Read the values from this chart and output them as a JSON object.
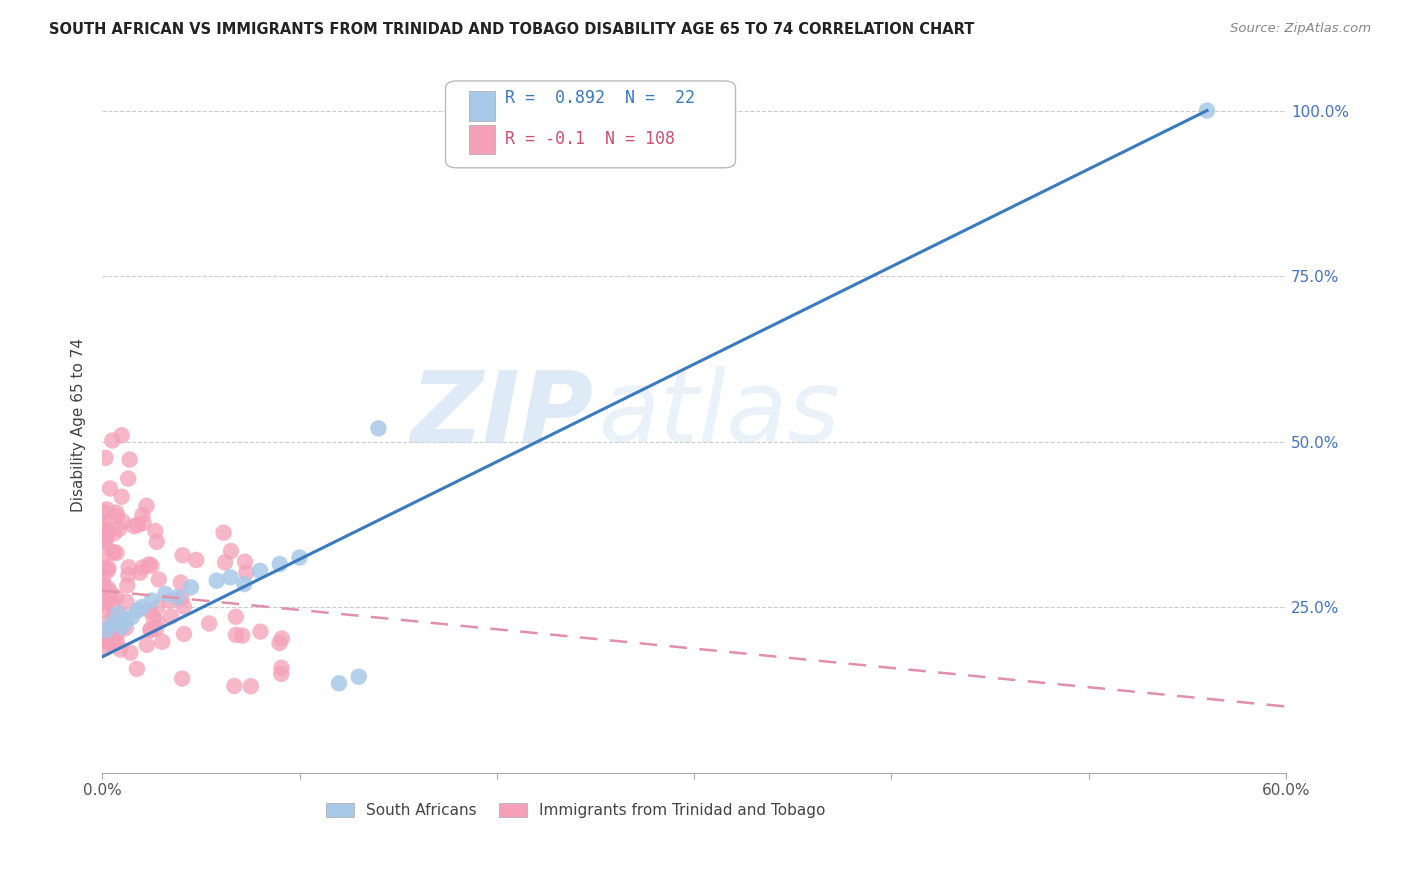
{
  "title": "SOUTH AFRICAN VS IMMIGRANTS FROM TRINIDAD AND TOBAGO DISABILITY AGE 65 TO 74 CORRELATION CHART",
  "source": "Source: ZipAtlas.com",
  "ylabel": "Disability Age 65 to 74",
  "xlim": [
    0.0,
    0.6
  ],
  "ylim": [
    0.0,
    1.05
  ],
  "blue_R": 0.892,
  "blue_N": 22,
  "pink_R": -0.1,
  "pink_N": 108,
  "blue_color": "#a8c8e8",
  "pink_color": "#f4a0b8",
  "blue_line_color": "#3a7abf",
  "pink_line_color": "#e090a8",
  "watermark_zip": "ZIP",
  "watermark_atlas": "atlas",
  "legend_labels": [
    "South Africans",
    "Immigrants from Trinidad and Tobago"
  ],
  "blue_line_x0": 0.0,
  "blue_line_y0": 0.175,
  "blue_line_x1": 0.56,
  "blue_line_y1": 1.0,
  "pink_line_x0": 0.0,
  "pink_line_y0": 0.275,
  "pink_line_x1": 0.6,
  "pink_line_y1": 0.1,
  "ytick_pos": [
    0.25,
    0.5,
    0.75,
    1.0
  ],
  "ytick_labels": [
    "25.0%",
    "50.0%",
    "75.0%",
    "100.0%"
  ],
  "xtick_pos": [
    0.0,
    0.1,
    0.2,
    0.3,
    0.4,
    0.5,
    0.6
  ],
  "xtick_labels": [
    "0.0%",
    "",
    "",
    "",
    "",
    "",
    "60.0%"
  ]
}
